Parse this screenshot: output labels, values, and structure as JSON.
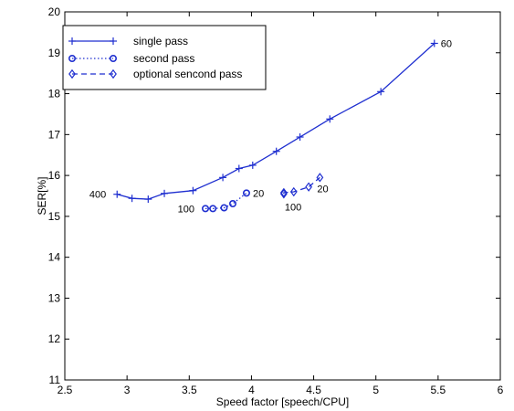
{
  "chart_data": {
    "type": "line",
    "title": "",
    "xlabel": "Speed factor [speech/CPU]",
    "ylabel": "SER[%]",
    "xlim": [
      2.5,
      6
    ],
    "ylim": [
      11,
      20
    ],
    "xticks": [
      "2.5",
      "3",
      "3.5",
      "4",
      "4.5",
      "5",
      "5.5",
      "6"
    ],
    "yticks": [
      "11",
      "12",
      "13",
      "14",
      "15",
      "16",
      "17",
      "18",
      "19",
      "20"
    ],
    "grid": false,
    "legend_position": "top-left",
    "colors": {
      "series": "#1f2fd0",
      "axis": "#000000"
    },
    "series": [
      {
        "name": "single pass",
        "line_style": "solid",
        "marker": "plus",
        "x": [
          2.92,
          3.04,
          3.17,
          3.3,
          3.53,
          3.77,
          3.9,
          4.01,
          4.2,
          4.39,
          4.63,
          5.04,
          5.47
        ],
        "y": [
          15.54,
          15.44,
          15.42,
          15.56,
          15.63,
          15.95,
          16.17,
          16.25,
          16.59,
          16.94,
          17.38,
          18.05,
          19.23
        ]
      },
      {
        "name": "second pass",
        "line_style": "dotted",
        "marker": "circle",
        "x": [
          3.63,
          3.69,
          3.78,
          3.85,
          3.96
        ],
        "y": [
          15.19,
          15.19,
          15.21,
          15.31,
          15.57
        ]
      },
      {
        "name": "optional sencond pass",
        "line_style": "dashed",
        "marker": "diamond",
        "x": [
          4.26,
          4.26,
          4.34,
          4.46,
          4.55
        ],
        "y": [
          15.55,
          15.58,
          15.6,
          15.72,
          15.95
        ]
      }
    ],
    "annotations": [
      {
        "text": "400",
        "x": 2.92,
        "y": 15.54,
        "side": "left"
      },
      {
        "text": "60",
        "x": 5.47,
        "y": 19.23,
        "side": "right"
      },
      {
        "text": "100",
        "x": 3.63,
        "y": 15.19,
        "side": "left"
      },
      {
        "text": "20",
        "x": 3.96,
        "y": 15.57,
        "side": "right"
      },
      {
        "text": "100",
        "x": 4.26,
        "y": 15.55,
        "side": "below"
      },
      {
        "text": "20",
        "x": 4.55,
        "y": 15.95,
        "side": "below-right"
      }
    ]
  }
}
